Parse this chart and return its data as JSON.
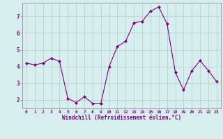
{
  "x": [
    0,
    1,
    2,
    3,
    4,
    5,
    6,
    7,
    8,
    9,
    10,
    11,
    12,
    13,
    14,
    15,
    16,
    17,
    18,
    19,
    20,
    21,
    22,
    23
  ],
  "y": [
    4.2,
    4.1,
    4.2,
    4.5,
    4.3,
    2.1,
    1.85,
    2.2,
    1.8,
    1.8,
    4.0,
    5.2,
    5.5,
    6.6,
    6.7,
    7.3,
    7.55,
    6.55,
    3.65,
    2.6,
    3.75,
    4.35,
    3.75,
    3.1
  ],
  "line_color": "#800080",
  "marker": "D",
  "marker_size": 2,
  "bg_color": "#d6eeee",
  "grid_color": "#b0cccc",
  "xlabel": "Windchill (Refroidissement éolien,°C)",
  "ylabel_ticks": [
    2,
    3,
    4,
    5,
    6,
    7
  ],
  "xtick_labels": [
    "0",
    "1",
    "2",
    "3",
    "4",
    "5",
    "6",
    "7",
    "8",
    "9",
    "10",
    "11",
    "12",
    "13",
    "14",
    "15",
    "16",
    "17",
    "18",
    "19",
    "20",
    "21",
    "22",
    "23"
  ],
  "xlim": [
    -0.5,
    23.5
  ],
  "ylim": [
    1.5,
    7.8
  ],
  "tick_color": "#800080",
  "spine_color": "#909090",
  "lw": 0.8
}
